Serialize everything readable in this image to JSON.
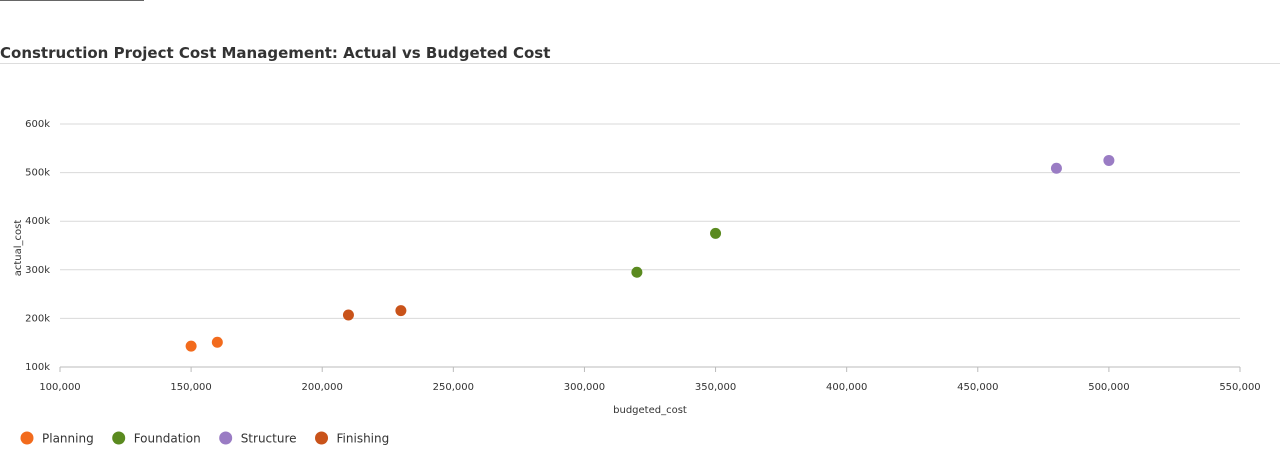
{
  "chart_data": {
    "type": "scatter",
    "title": "Construction Project Cost Management: Actual vs Budgeted Cost",
    "xlabel": "budgeted_cost",
    "ylabel": "actual_cost",
    "xlim": [
      100000,
      550000
    ],
    "xticks": [
      {
        "value": 100000,
        "label": "100,000"
      },
      {
        "value": 150000,
        "label": "150,000"
      },
      {
        "value": 200000,
        "label": "200,000"
      },
      {
        "value": 250000,
        "label": "250,000"
      },
      {
        "value": 300000,
        "label": "300,000"
      },
      {
        "value": 350000,
        "label": "350,000"
      },
      {
        "value": 400000,
        "label": "400,000"
      },
      {
        "value": 450000,
        "label": "450,000"
      },
      {
        "value": 500000,
        "label": "500,000"
      },
      {
        "value": 550000,
        "label": "550,000"
      }
    ],
    "ylim": [
      100000,
      600000
    ],
    "yticks": [
      {
        "value": 100000,
        "label": "100k"
      },
      {
        "value": 200000,
        "label": "200k"
      },
      {
        "value": 300000,
        "label": "300k"
      },
      {
        "value": 400000,
        "label": "400k"
      },
      {
        "value": 500000,
        "label": "500k"
      },
      {
        "value": 600000,
        "label": "600k"
      }
    ],
    "grid": true,
    "series": [
      {
        "name": "Planning",
        "color": "#f26b1d",
        "x": [
          150000,
          160000
        ],
        "values": [
          143000,
          151000
        ]
      },
      {
        "name": "Foundation",
        "color": "#5a8a1f",
        "x": [
          320000,
          350000
        ],
        "values": [
          295000,
          375000
        ]
      },
      {
        "name": "Structure",
        "color": "#9a7cc4",
        "x": [
          480000,
          500000
        ],
        "values": [
          509000,
          525000
        ]
      },
      {
        "name": "Finishing",
        "color": "#c9531a",
        "x": [
          210000,
          230000
        ],
        "values": [
          207000,
          216000
        ]
      }
    ]
  }
}
